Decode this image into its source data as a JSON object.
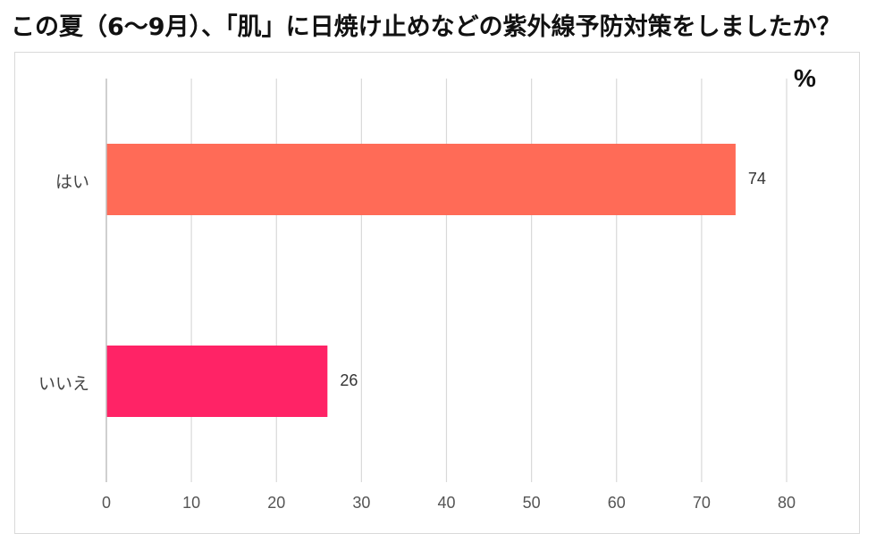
{
  "chart_data": {
    "type": "bar",
    "orientation": "horizontal",
    "title": "この夏（6～9月）、「肌」に日焼け止めなどの紫外線予防対策をしましたか？",
    "unit": "%",
    "categories": [
      "はい",
      "いいえ"
    ],
    "values": [
      74,
      26
    ],
    "colors": [
      "#ff6b57",
      "#ff2366"
    ],
    "xlim": [
      0,
      80
    ],
    "xticks": [
      "0",
      "10",
      "20",
      "30",
      "40",
      "50",
      "60",
      "70",
      "80"
    ],
    "grid": true,
    "legend": "none"
  }
}
